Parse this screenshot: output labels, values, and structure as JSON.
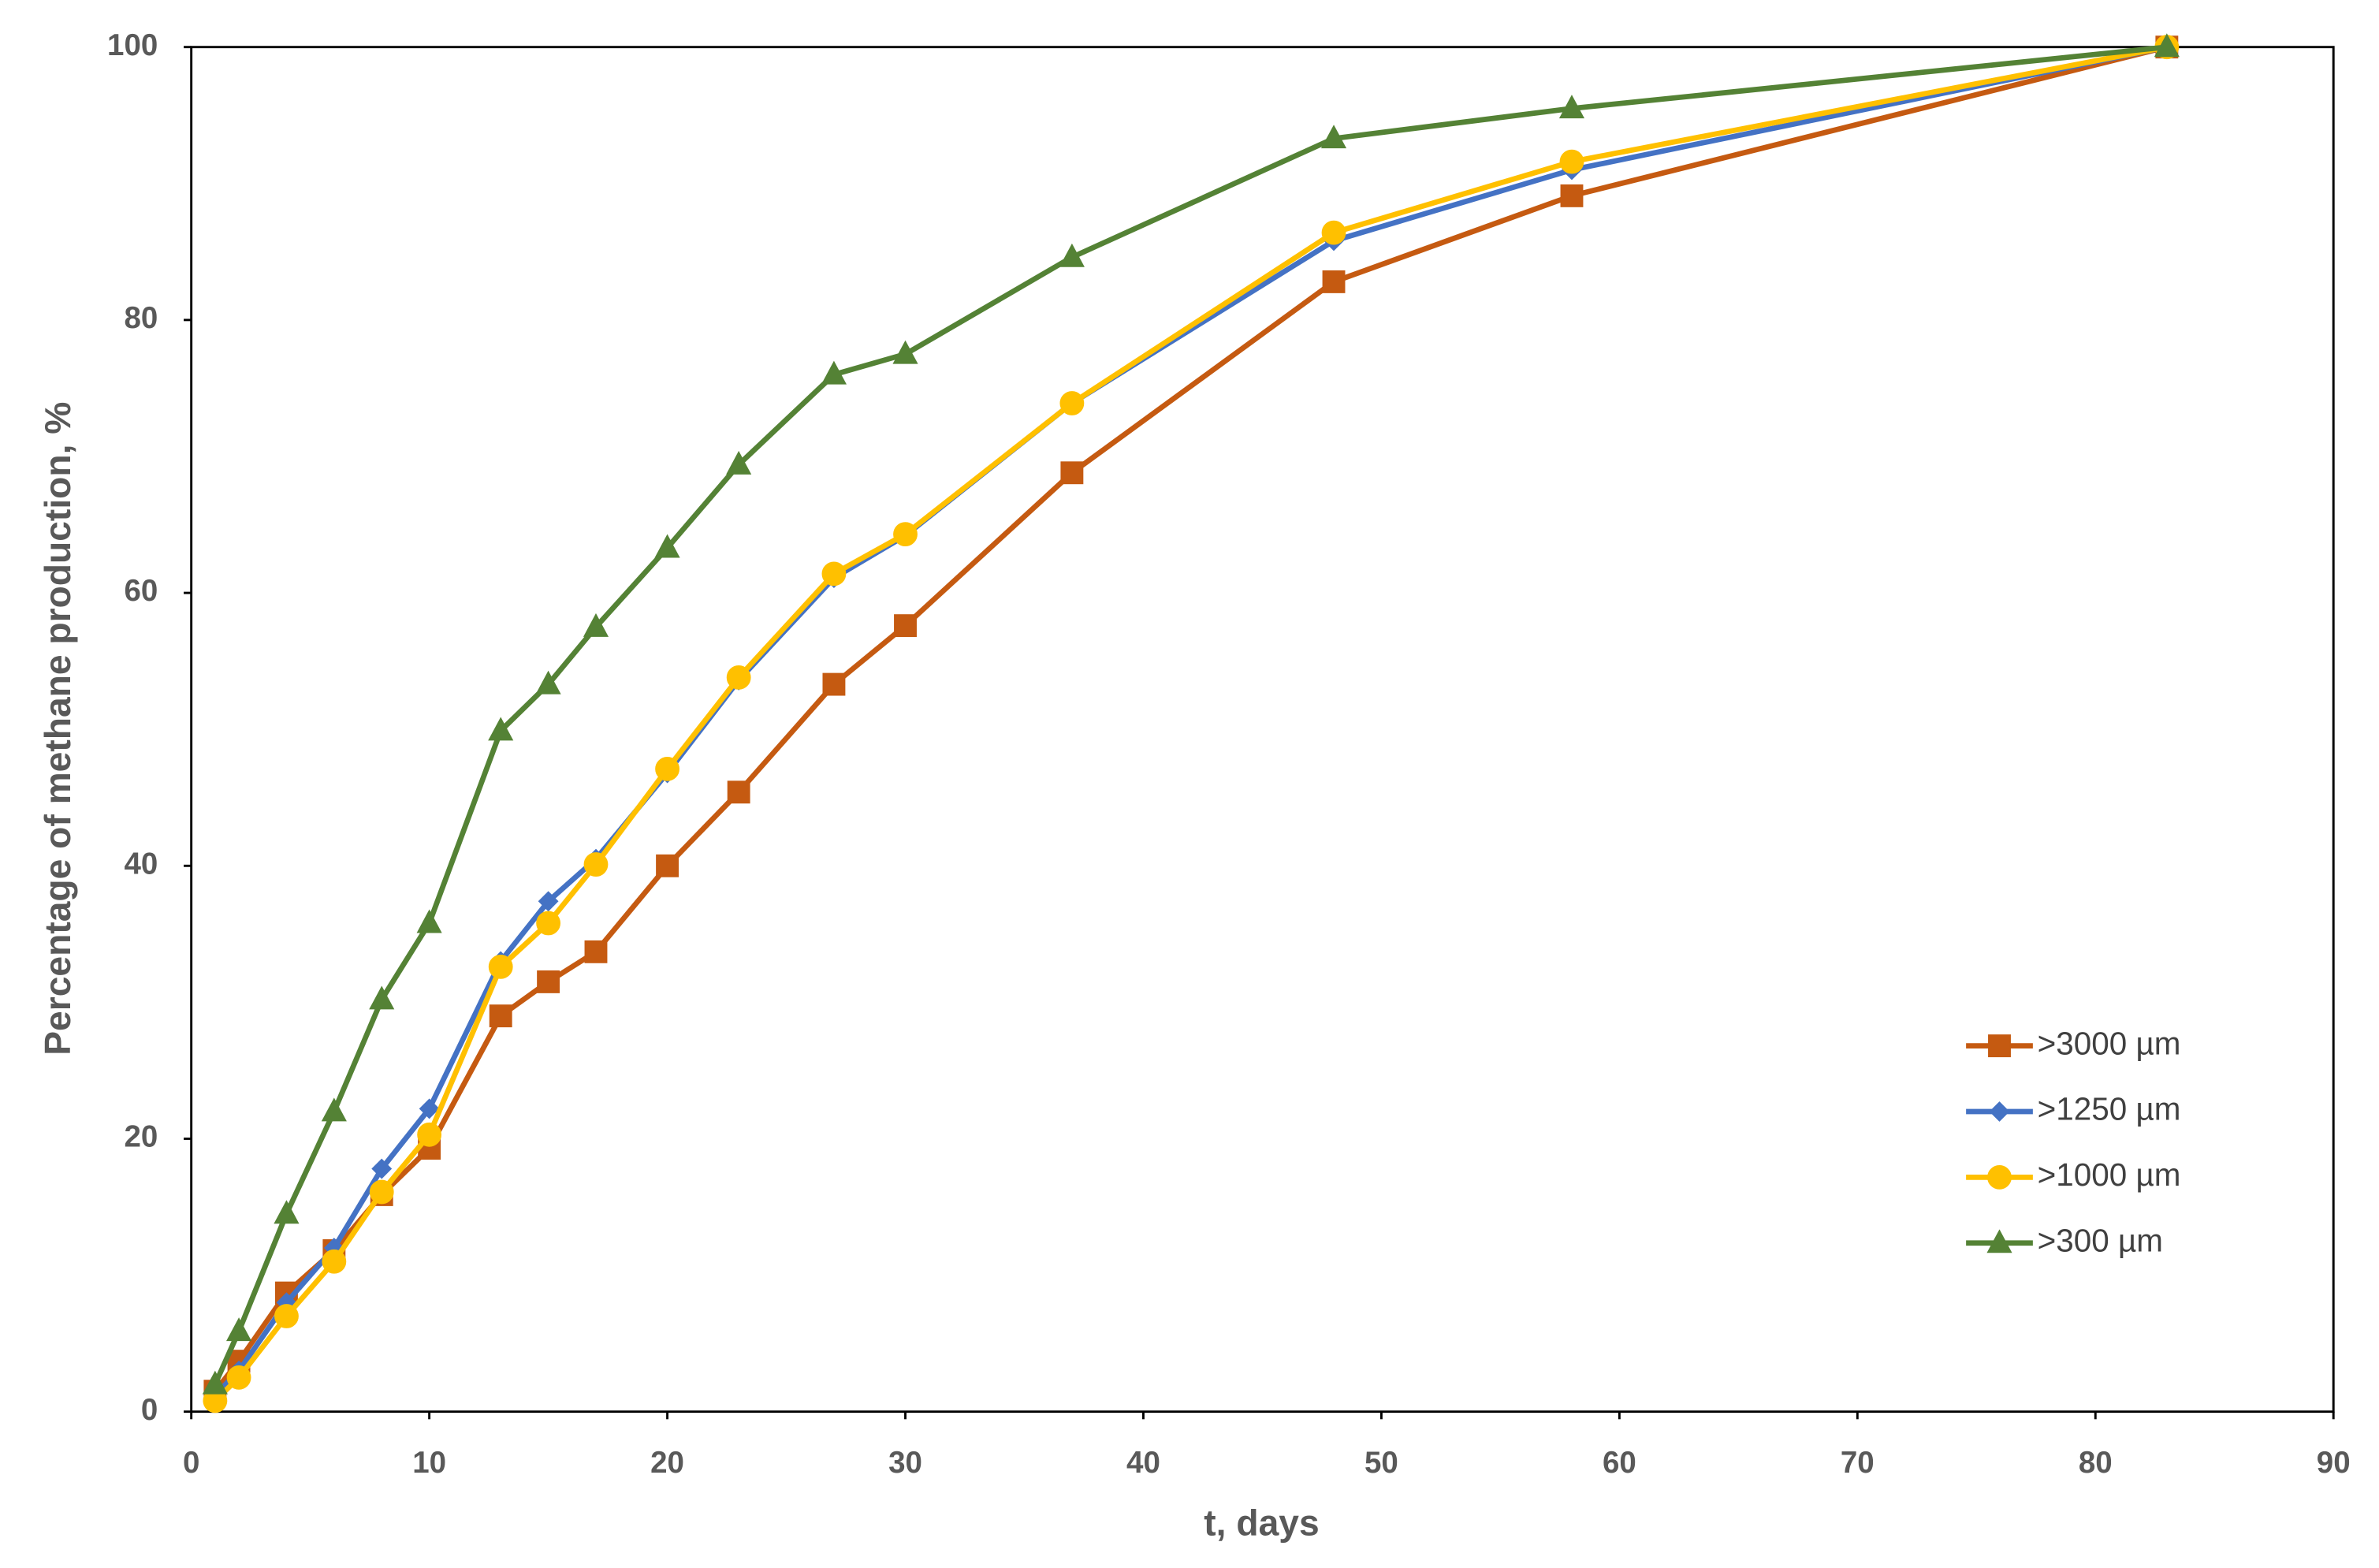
{
  "chart_data": {
    "type": "line",
    "x_label": "t, days",
    "y_label": "Percentage of methane production, %",
    "x": [
      1,
      2,
      4,
      6,
      8,
      10,
      13,
      15,
      17,
      20,
      23,
      27,
      30,
      37,
      48,
      58,
      83
    ],
    "series": [
      {
        "name": ">3000 µm",
        "color": "#c55a11",
        "marker": "square",
        "values": [
          1.5,
          3.7,
          8.7,
          11.8,
          15.9,
          19.3,
          29,
          31.5,
          33.7,
          40,
          45.4,
          53.3,
          57.6,
          68.8,
          82.8,
          89.1,
          100
        ]
      },
      {
        "name": ">1250 µm",
        "color": "#4472c4",
        "marker": "diamond",
        "values": [
          1.2,
          3,
          8,
          12,
          17.8,
          22.2,
          33,
          37.4,
          40.5,
          46.8,
          53.6,
          61.1,
          64.2,
          73.9,
          85.8,
          91,
          100
        ]
      },
      {
        "name": ">1000 µm",
        "color": "#ffc000",
        "marker": "circle",
        "values": [
          0.8,
          2.5,
          7,
          11,
          16.1,
          20.3,
          32.6,
          35.8,
          40.1,
          47.1,
          53.8,
          61.4,
          64.3,
          73.9,
          86.4,
          91.6,
          100
        ]
      },
      {
        "name": ">300 µm",
        "color": "#548235",
        "marker": "triangle",
        "values": [
          2,
          5.9,
          14.5,
          22,
          30.2,
          35.8,
          49.9,
          53.3,
          57.5,
          63.3,
          69.4,
          76,
          77.5,
          84.6,
          93.3,
          95.5,
          100
        ]
      }
    ],
    "xlim": [
      0,
      90
    ],
    "xticks": [
      0,
      10,
      20,
      30,
      40,
      50,
      60,
      70,
      80,
      90
    ],
    "ylim": [
      0,
      100
    ],
    "yticks": [
      0,
      20,
      40,
      60,
      80,
      100
    ],
    "grid": false,
    "legend": "lower right"
  }
}
